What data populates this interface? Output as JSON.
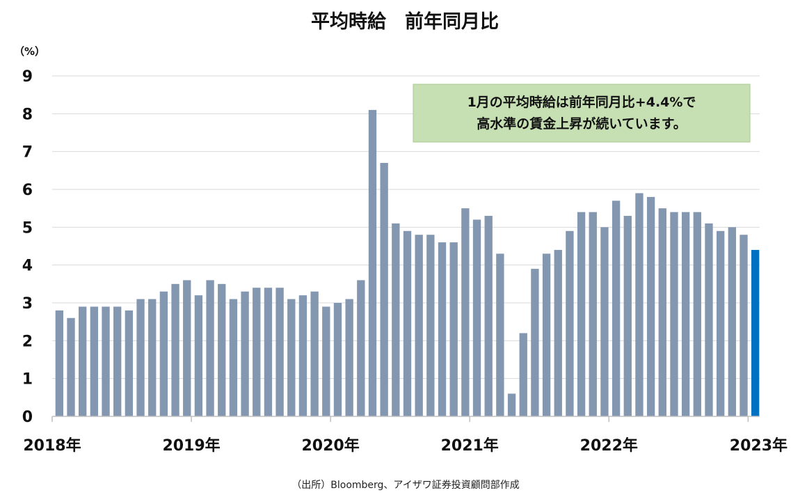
{
  "chart_data": {
    "type": "bar",
    "title": "平均時給　前年同月比",
    "ylabel": "（%）",
    "ylim": [
      0,
      9
    ],
    "yticks": [
      0,
      1,
      2,
      3,
      4,
      5,
      6,
      7,
      8,
      9
    ],
    "grid": true,
    "xtick_labels": [
      "2018年",
      "2019年",
      "2020年",
      "2021年",
      "2022年",
      "2023年"
    ],
    "series": [
      {
        "color": "#8497b0",
        "highlight_color": "#0070c0",
        "values": [
          2.8,
          2.6,
          2.9,
          2.9,
          2.9,
          2.9,
          2.8,
          3.1,
          3.1,
          3.3,
          3.5,
          3.6,
          3.2,
          3.6,
          3.5,
          3.1,
          3.3,
          3.4,
          3.4,
          3.4,
          3.1,
          3.2,
          3.3,
          2.9,
          3.0,
          3.1,
          3.6,
          8.1,
          6.7,
          5.1,
          4.9,
          4.8,
          4.8,
          4.6,
          4.6,
          5.5,
          5.2,
          5.3,
          4.3,
          0.6,
          2.2,
          3.9,
          4.3,
          4.4,
          4.9,
          5.4,
          5.4,
          5.0,
          5.7,
          5.3,
          5.9,
          5.8,
          5.5,
          5.4,
          5.4,
          5.4,
          5.1,
          4.9,
          5.0,
          4.8,
          4.4
        ]
      }
    ],
    "annotation": {
      "line1": "1月の平均時給は前年同月比+4.4%で",
      "line2": "高水準の賃金上昇が続いています。",
      "fill": "#c6e0b4",
      "border": "#a9c98f"
    },
    "source": "（出所）Bloomberg、アイザワ証券投資顧問部作成"
  }
}
